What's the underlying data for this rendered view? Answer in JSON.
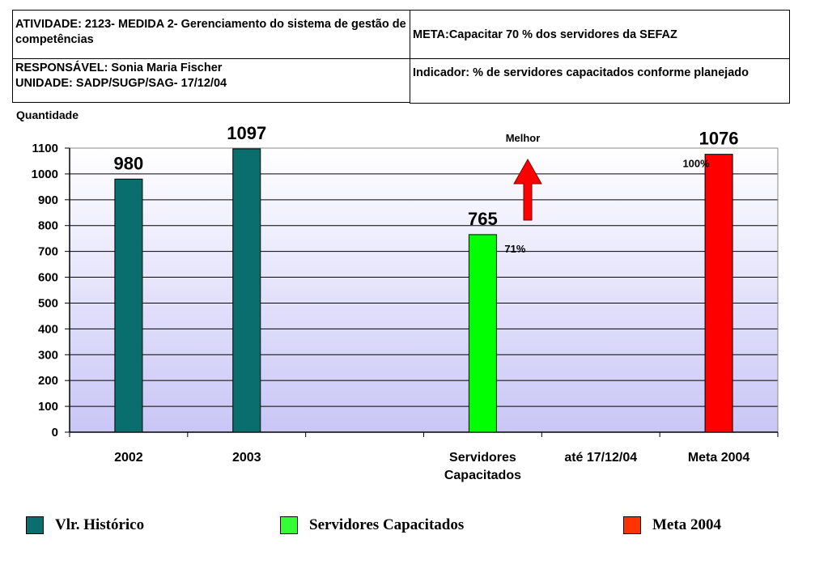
{
  "header": {
    "atividade": "ATIVIDADE: 2123- MEDIDA 2- Gerenciamento do sistema de gestão de competências",
    "meta": "META:Capacitar 70 % dos servidores da SEFAZ",
    "responsavel": "RESPONSÁVEL: Sonia Maria Fischer",
    "unidade": "UNIDADE: SADP/SUGP/SAG- 17/12/04",
    "indicador": "Indicador: % de servidores capacitados conforme planejado"
  },
  "chart_data": {
    "type": "bar",
    "ylabel": "Quantidade",
    "ylim": [
      0,
      1100
    ],
    "yticks": [
      0,
      100,
      200,
      300,
      400,
      500,
      600,
      700,
      800,
      900,
      1000,
      1100
    ],
    "grid": true,
    "slots": 6,
    "bars": [
      {
        "slot": 0,
        "value": 980,
        "label": "980",
        "color": "#0b6e6e",
        "series": "Vlr. Histórico"
      },
      {
        "slot": 1,
        "value": 1097,
        "label": "1097",
        "color": "#0b6e6e",
        "series": "Vlr. Histórico"
      },
      {
        "slot": 3,
        "value": 765,
        "label": "765",
        "color": "#00ff00",
        "series": "Servidores Capacitados"
      },
      {
        "slot": 5,
        "value": 1076,
        "label": "1076",
        "color": "#ff0000",
        "series": "Meta 2004"
      }
    ],
    "category_labels": [
      {
        "slot": 0,
        "lines": [
          "2002"
        ]
      },
      {
        "slot": 1,
        "lines": [
          "2003"
        ]
      },
      {
        "slot": 3,
        "lines": [
          "Servidores",
          "Capacitados"
        ]
      },
      {
        "slot": 4,
        "lines": [
          "até 17/12/04"
        ]
      },
      {
        "slot": 5,
        "lines": [
          "Meta 2004"
        ]
      }
    ],
    "annotations": [
      {
        "text": "71%",
        "near_slot": 3
      },
      {
        "text": "100%",
        "near_slot": 5
      },
      {
        "text": "Melhor",
        "arrow": "up"
      }
    ],
    "legend": [
      {
        "name": "Vlr. Histórico",
        "color": "#0b6e6e"
      },
      {
        "name": "Servidores Capacitados",
        "color": "#33ff33"
      },
      {
        "name": "Meta 2004",
        "color": "#ff3300"
      }
    ],
    "legend_placement": "bottom"
  }
}
